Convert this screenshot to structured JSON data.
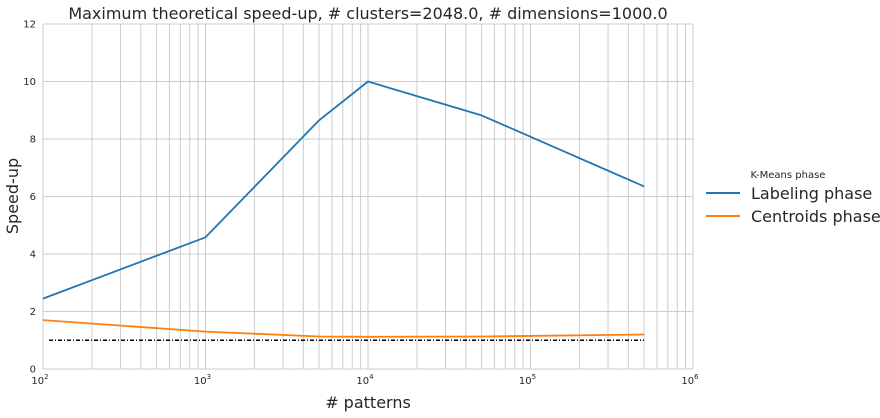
{
  "chart_data": {
    "type": "line",
    "title": "Maximum theoretical speed-up, # clusters=2048.0, # dimensions=1000.0",
    "xlabel": "# patterns",
    "ylabel": "Speed-up",
    "xscale": "log",
    "xlim": [
      100,
      1000000
    ],
    "ylim": [
      0,
      12
    ],
    "yticks": [
      0,
      2,
      4,
      6,
      8,
      10,
      12
    ],
    "xticks": [
      {
        "value": 100,
        "base": "10",
        "exp": "2"
      },
      {
        "value": 1000,
        "base": "10",
        "exp": "3"
      },
      {
        "value": 10000,
        "base": "10",
        "exp": "4"
      },
      {
        "value": 100000,
        "base": "10",
        "exp": "5"
      },
      {
        "value": 1000000,
        "base": "10",
        "exp": "6"
      }
    ],
    "grid": true,
    "legend": {
      "title": "K-Means phase",
      "position": "right"
    },
    "series": [
      {
        "name": "Labeling phase",
        "color": "#1f77b4",
        "x": [
          100,
          1000,
          5000,
          10000,
          50000,
          500000
        ],
        "y": [
          2.45,
          4.58,
          8.65,
          10.0,
          8.82,
          6.35
        ]
      },
      {
        "name": "Centroids phase",
        "color": "#ff7f0e",
        "x": [
          100,
          1000,
          5000,
          10000,
          50000,
          500000
        ],
        "y": [
          1.7,
          1.3,
          1.13,
          1.12,
          1.13,
          1.2
        ]
      }
    ],
    "reference_line": {
      "y": 1.0,
      "x": [
        100,
        500000
      ],
      "style": "dash-dot",
      "color": "#000000"
    }
  }
}
